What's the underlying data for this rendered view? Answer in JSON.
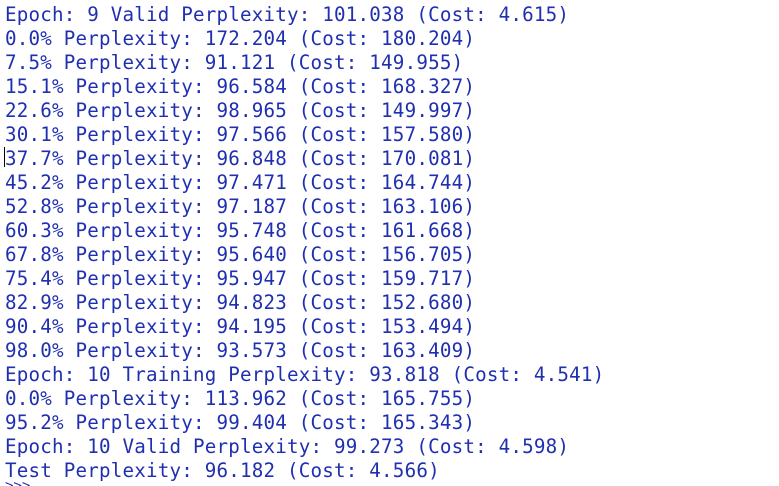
{
  "console": {
    "lines": [
      "Epoch: 9 Valid Perplexity: 101.038 (Cost: 4.615)",
      "0.0% Perplexity: 172.204 (Cost: 180.204)",
      "7.5% Perplexity: 91.121 (Cost: 149.955)",
      "15.1% Perplexity: 96.584 (Cost: 168.327)",
      "22.6% Perplexity: 98.965 (Cost: 149.997)",
      "30.1% Perplexity: 97.566 (Cost: 157.580)",
      "37.7% Perplexity: 96.848 (Cost: 170.081)",
      "45.2% Perplexity: 97.471 (Cost: 164.744)",
      "52.8% Perplexity: 97.187 (Cost: 163.106)",
      "60.3% Perplexity: 95.748 (Cost: 161.668)",
      "67.8% Perplexity: 95.640 (Cost: 156.705)",
      "75.4% Perplexity: 95.947 (Cost: 159.717)",
      "82.9% Perplexity: 94.823 (Cost: 152.680)",
      "90.4% Perplexity: 94.195 (Cost: 153.494)",
      "98.0% Perplexity: 93.573 (Cost: 163.409)",
      "Epoch: 10 Training Perplexity: 93.818 (Cost: 4.541)",
      "0.0% Perplexity: 113.962 (Cost: 165.755)",
      "95.2% Perplexity: 99.404 (Cost: 165.343)",
      "Epoch: 10 Valid Perplexity: 99.273 (Cost: 4.598)",
      "Test Perplexity: 96.182 (Cost: 4.566)"
    ],
    "prompt": ">>>",
    "text_color": "#1f2fb0",
    "background_color": "#ffffff"
  }
}
